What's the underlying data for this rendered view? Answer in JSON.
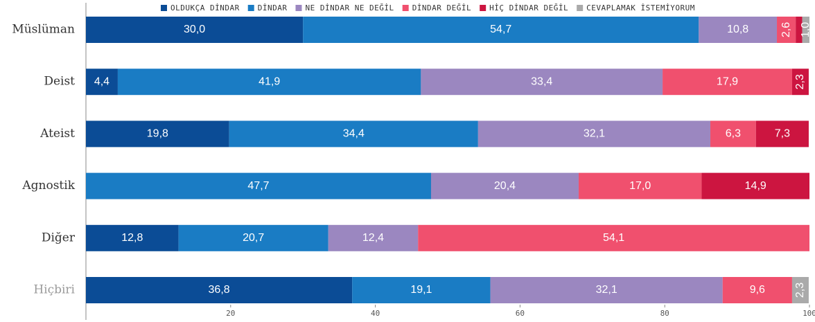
{
  "chart_data": {
    "type": "stacked-bar-horizontal",
    "categories": [
      "Müslüman",
      "Deist",
      "Ateist",
      "Agnostik",
      "Diğer",
      "Hiçbiri"
    ],
    "series": [
      {
        "name": "OLDUKÇA DİNDAR",
        "color": "#0b4c96",
        "values": [
          30.0,
          4.4,
          19.8,
          null,
          12.8,
          36.8
        ],
        "value_labels": [
          "30,0",
          "4,4",
          "19,8",
          null,
          "12,8",
          "36,8"
        ]
      },
      {
        "name": "DİNDAR",
        "color": "#1a7cc4",
        "values": [
          54.7,
          41.9,
          34.4,
          47.7,
          20.7,
          19.1
        ],
        "value_labels": [
          "54,7",
          "41,9",
          "34,4",
          "47,7",
          "20,7",
          "19,1"
        ]
      },
      {
        "name": "NE DİNDAR NE DEĞİL",
        "color": "#9b87c0",
        "values": [
          10.8,
          33.4,
          32.1,
          20.4,
          12.4,
          32.1
        ],
        "value_labels": [
          "10,8",
          "33,4",
          "32,1",
          "20,4",
          "12,4",
          "32,1"
        ]
      },
      {
        "name": "DİNDAR DEĞİL",
        "color": "#f0506e",
        "values": [
          2.6,
          17.9,
          6.3,
          17.0,
          54.1,
          9.6
        ],
        "value_labels": [
          "2,6",
          "17,9",
          "6,3",
          "17,0",
          "54,1",
          "9,6"
        ]
      },
      {
        "name": "HİÇ DİNDAR DEĞİL",
        "color": "#cc1540",
        "values": [
          0.9,
          2.3,
          7.3,
          14.9,
          null,
          null
        ],
        "value_labels": [
          null,
          "2,3",
          "7,3",
          "14,9",
          null,
          null
        ]
      },
      {
        "name": "CEVAPLAMAK İSTEMİYORUM",
        "color": "#aaaaaa",
        "values": [
          1.0,
          null,
          null,
          null,
          null,
          2.3
        ],
        "value_labels": [
          "1,0",
          null,
          null,
          null,
          null,
          "2,3"
        ]
      }
    ],
    "xlim": [
      0,
      100
    ],
    "xticks": [
      20,
      40,
      60,
      80,
      100
    ],
    "legend": "top"
  }
}
